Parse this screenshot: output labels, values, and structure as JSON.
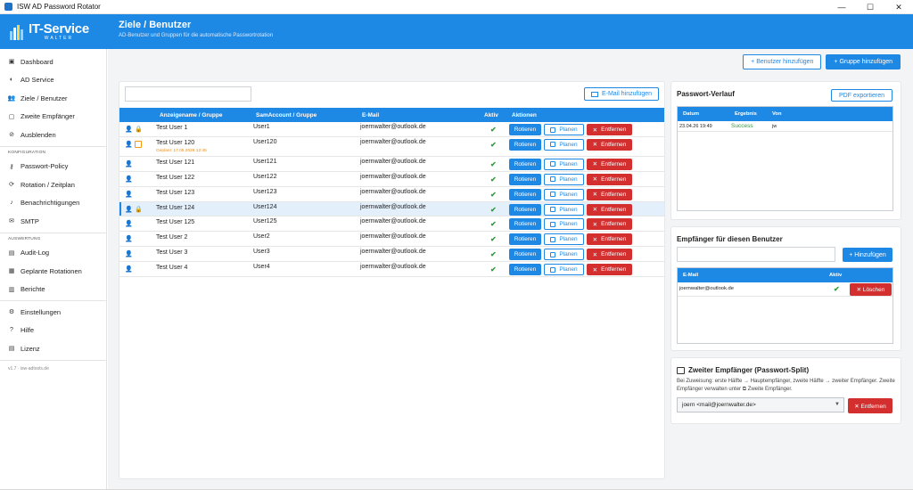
{
  "window": {
    "title": "ISW AD Password Rotator",
    "controls": {
      "minimize": "—",
      "maximize": "☐",
      "close": "✕"
    }
  },
  "brand": {
    "name": "IT-Service",
    "sub": "WALTER"
  },
  "header": {
    "title": "Ziele / Benutzer",
    "subtitle": "AD-Benutzer und Gruppen für die automatische Passwortrotation"
  },
  "sidebar": {
    "items": [
      {
        "label": "Dashboard",
        "icon": "dashboard-icon",
        "glyph": "▣"
      },
      {
        "label": "AD Service",
        "icon": "ad-service-icon",
        "glyph": "◐"
      },
      {
        "label": "Ziele / Benutzer",
        "icon": "users-icon",
        "glyph": "👥"
      },
      {
        "label": "Zweite Empfänger",
        "icon": "second-recipient-icon",
        "glyph": "▢"
      },
      {
        "label": "Ausblenden",
        "icon": "hide-icon",
        "glyph": "⊘"
      }
    ],
    "section_config": "KONFIGURATION",
    "config_items": [
      {
        "label": "Passwort-Policy",
        "icon": "key-icon",
        "glyph": "⚷"
      },
      {
        "label": "Rotation / Zeitplan",
        "icon": "rotation-icon",
        "glyph": "⟳"
      },
      {
        "label": "Benachrichtigungen",
        "icon": "bell-icon",
        "glyph": "♪"
      },
      {
        "label": "SMTP",
        "icon": "smtp-icon",
        "glyph": "✉"
      }
    ],
    "section_eval": "AUSWERTUNG",
    "eval_items": [
      {
        "label": "Audit-Log",
        "icon": "audit-log-icon",
        "glyph": "▤"
      },
      {
        "label": "Geplante Rotationen",
        "icon": "calendar-icon",
        "glyph": "▦"
      },
      {
        "label": "Berichte",
        "icon": "reports-icon",
        "glyph": "▥"
      }
    ],
    "bottom_items": [
      {
        "label": "Einstellungen",
        "icon": "gear-icon",
        "glyph": "⚙"
      },
      {
        "label": "Hilfe",
        "icon": "help-icon",
        "glyph": "?"
      },
      {
        "label": "Lizenz",
        "icon": "license-icon",
        "glyph": "▤"
      }
    ],
    "version": "v1.7 · isw-adtools.de"
  },
  "toolbar": {
    "add_user": "+ Benutzer hinzufügen",
    "add_group": "+ Gruppe hinzufügen"
  },
  "users": {
    "search_placeholder": "",
    "email_add": "E-Mail hinzufügen",
    "columns": [
      "Anzeigename / Gruppe",
      "SamAccount / Gruppe",
      "E-Mail",
      "Aktiv",
      "Aktionen"
    ],
    "actions": {
      "rotate": "Rotieren",
      "plan": "Planen",
      "remove": "Entfernen"
    },
    "active_mark": "✔",
    "rows": [
      {
        "name": "Test User 1",
        "sam": "User1",
        "email": "joernwalter@outlook.de",
        "locked": true
      },
      {
        "name": "Test User 120",
        "sam": "User120",
        "email": "joernwalter@outlook.de",
        "scheduled": "Geplant: 17.05.2026 12:45"
      },
      {
        "name": "Test User 121",
        "sam": "User121",
        "email": "joernwalter@outlook.de"
      },
      {
        "name": "Test User 122",
        "sam": "User122",
        "email": "joernwalter@outlook.de"
      },
      {
        "name": "Test User 123",
        "sam": "User123",
        "email": "joernwalter@outlook.de"
      },
      {
        "name": "Test User 124",
        "sam": "User124",
        "email": "joernwalter@outlook.de",
        "locked": true,
        "selected": true
      },
      {
        "name": "Test User 125",
        "sam": "User125",
        "email": "joernwalter@outlook.de"
      },
      {
        "name": "Test User 2",
        "sam": "User2",
        "email": "joernwalter@outlook.de"
      },
      {
        "name": "Test User 3",
        "sam": "User3",
        "email": "joernwalter@outlook.de"
      },
      {
        "name": "Test User 4",
        "sam": "User4",
        "email": "joernwalter@outlook.de"
      }
    ]
  },
  "history": {
    "title": "Passwort-Verlauf",
    "export": "PDF exportieren",
    "columns": [
      "Datum",
      "Ergebnis",
      "Von"
    ],
    "rows": [
      {
        "date": "23.04.26 19:49",
        "result": "Success",
        "by": "jw"
      }
    ]
  },
  "recipients": {
    "title": "Empfänger für diesen Benutzer",
    "input_placeholder": "",
    "add": "+ Hinzufügen",
    "columns": [
      "E-Mail",
      "Aktiv"
    ],
    "rows": [
      {
        "email": "joernwalter@outlook.de",
        "active": "✔"
      }
    ],
    "delete": "✕ Löschen"
  },
  "second": {
    "title": "Zweiter Empfänger (Passwort-Split)",
    "desc": "Bei Zuweisung: erste Hälfte → Hauptempfänger, zweite Hälfte → zweiter Empfänger. Zweite Empfänger verwalten unter ⧉ Zweite Empfänger.",
    "selected": "joern <mail@joernwalter.de>",
    "remove": "✕ Entfernen"
  },
  "colors": {
    "accent": "#1e88e5",
    "danger": "#d32f2f",
    "success": "#2e9d3a",
    "scheduled": "#f08a00"
  }
}
